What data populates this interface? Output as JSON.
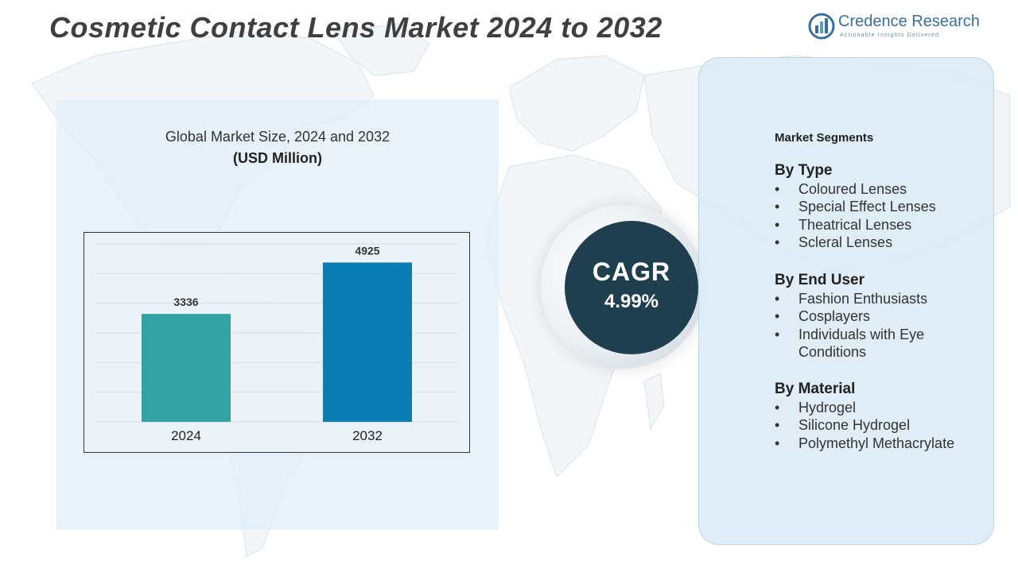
{
  "page": {
    "title": "Cosmetic Contact Lens  Market 2024 to 2032",
    "logo": {
      "name": "Credence Research",
      "tagline": "Actionable Insights Delivered"
    }
  },
  "chart_panel": {
    "heading": "Global Market Size, 2024 and 2032",
    "unit": "(USD Million)"
  },
  "chart_data": {
    "type": "bar",
    "categories": [
      "2024",
      "2032"
    ],
    "values": [
      3336,
      4925
    ],
    "colors": [
      "#33a2a4",
      "#0b7db4"
    ],
    "title": "Global Market Size, 2024 and 2032",
    "ylabel": "(USD Million)",
    "ylim": [
      0,
      5500
    ],
    "grid": true,
    "legend": "none"
  },
  "cagr": {
    "label": "CAGR",
    "value": "4.99%"
  },
  "segments": {
    "title": "Market Segments",
    "groups": [
      {
        "heading": "By Type",
        "items": [
          "Coloured Lenses",
          "Special Effect Lenses",
          "Theatrical Lenses",
          "Scleral Lenses"
        ]
      },
      {
        "heading": "By End User",
        "items": [
          "Fashion Enthusiasts",
          "Cosplayers",
          "Individuals with Eye",
          "Conditions"
        ]
      },
      {
        "heading": "By Material",
        "items": [
          "Hydrogel",
          "Silicone Hydrogel",
          "Polymethyl Methacrylate"
        ]
      }
    ]
  },
  "colors": {
    "title_text": "#3f3f3f",
    "panel_bg": "#e1edf7",
    "cagr_circle": "#1f3f4f",
    "brand": "#3a6f9a"
  }
}
